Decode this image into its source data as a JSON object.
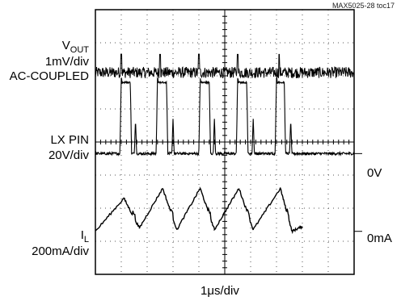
{
  "figure_tag": "MAX5025-28 toc17",
  "chart_data": {
    "type": "line",
    "xlabel": "1μs/div",
    "divisions": {
      "x": 10,
      "y": 8
    },
    "series": [
      {
        "name": "VOUT",
        "label_main": "V",
        "label_sub": "OUT",
        "scale": "1mV/div",
        "coupling": "AC-COUPLED",
        "color": "#000000",
        "baseline_div": 6.1,
        "spike_times_div": [
          1.0,
          2.5,
          4.0,
          5.5,
          7.1
        ]
      },
      {
        "name": "LX PIN",
        "label_main": "LX PIN",
        "scale": "20V/div",
        "ground_marker": "0V",
        "ground_div": 3.65,
        "high_div": 5.8,
        "color": "#000000",
        "pulses": [
          {
            "rise": 0.95,
            "fall": 1.35,
            "ring": 1.55
          },
          {
            "rise": 2.35,
            "fall": 2.75,
            "ring": 3.0
          },
          {
            "rise": 4.0,
            "fall": 4.4,
            "ring": 4.6
          },
          {
            "rise": 5.45,
            "fall": 5.85,
            "ring": 6.1
          },
          {
            "rise": 6.95,
            "fall": 7.3,
            "ring": 7.55
          }
        ]
      },
      {
        "name": "IL",
        "label_main": "I",
        "label_sub": "L",
        "scale": "200mA/div",
        "ground_marker": "0mA",
        "ground_div": 1.3,
        "color": "#000000",
        "peaks": [
          {
            "t": 1.1,
            "v": 2.3
          },
          {
            "t": 2.6,
            "v": 2.6
          },
          {
            "t": 4.05,
            "v": 2.6
          },
          {
            "t": 5.55,
            "v": 2.6
          },
          {
            "t": 7.15,
            "v": 2.6
          }
        ],
        "valleys": [
          {
            "t": 0.0,
            "v": 1.3
          },
          {
            "t": 1.7,
            "v": 1.4
          },
          {
            "t": 3.15,
            "v": 1.35
          },
          {
            "t": 4.6,
            "v": 1.35
          },
          {
            "t": 6.1,
            "v": 1.35
          },
          {
            "t": 7.6,
            "v": 1.3
          }
        ],
        "end": {
          "t": 8.0,
          "v": 1.45
        }
      }
    ]
  }
}
